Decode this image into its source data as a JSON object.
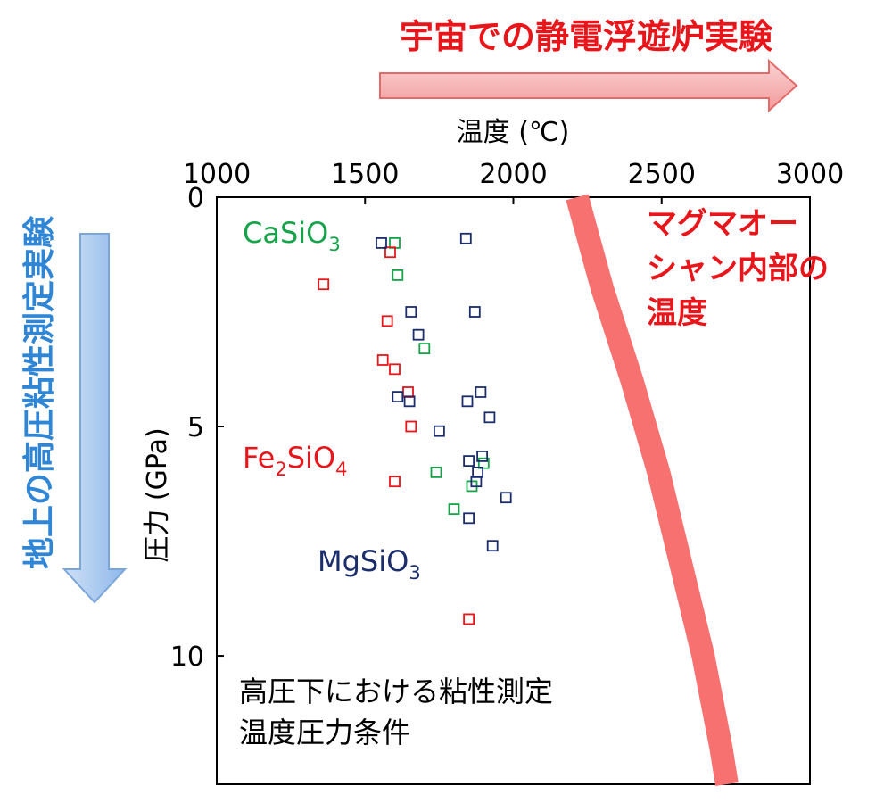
{
  "chart_data": {
    "type": "scatter",
    "xlabel": "温度 (℃)",
    "ylabel": "圧力 (GPa)",
    "xlim": [
      1000,
      3000
    ],
    "ylim": [
      0,
      12.8
    ],
    "y_inverted": true,
    "x_axis_position": "top",
    "xticks": [
      1000,
      1500,
      2000,
      2500,
      3000
    ],
    "yticks": [
      0,
      5,
      10
    ],
    "grid": false,
    "series": [
      {
        "name": "CaSiO3",
        "color": "#16a34a",
        "marker": "open-square",
        "points": [
          {
            "x": 1600,
            "y": 1.0
          },
          {
            "x": 1610,
            "y": 1.7
          },
          {
            "x": 1700,
            "y": 3.3
          },
          {
            "x": 1740,
            "y": 6.0
          },
          {
            "x": 1800,
            "y": 6.8
          },
          {
            "x": 1860,
            "y": 6.3
          },
          {
            "x": 1900,
            "y": 5.8
          }
        ]
      },
      {
        "name": "Fe2SiO4",
        "color": "#e8161b",
        "marker": "open-square",
        "points": [
          {
            "x": 1360,
            "y": 1.9
          },
          {
            "x": 1585,
            "y": 1.2
          },
          {
            "x": 1575,
            "y": 2.7
          },
          {
            "x": 1560,
            "y": 3.55
          },
          {
            "x": 1600,
            "y": 3.75
          },
          {
            "x": 1645,
            "y": 4.25
          },
          {
            "x": 1655,
            "y": 5.0
          },
          {
            "x": 1600,
            "y": 6.2
          },
          {
            "x": 1850,
            "y": 9.2
          }
        ]
      },
      {
        "name": "MgSiO3",
        "color": "#1b2d6b",
        "marker": "open-square",
        "points": [
          {
            "x": 1555,
            "y": 1.0
          },
          {
            "x": 1840,
            "y": 0.9
          },
          {
            "x": 1655,
            "y": 2.5
          },
          {
            "x": 1870,
            "y": 2.5
          },
          {
            "x": 1680,
            "y": 3.0
          },
          {
            "x": 1610,
            "y": 4.35
          },
          {
            "x": 1650,
            "y": 4.45
          },
          {
            "x": 1845,
            "y": 4.45
          },
          {
            "x": 1890,
            "y": 4.25
          },
          {
            "x": 1920,
            "y": 4.8
          },
          {
            "x": 1750,
            "y": 5.1
          },
          {
            "x": 1850,
            "y": 5.75
          },
          {
            "x": 1895,
            "y": 5.65
          },
          {
            "x": 1880,
            "y": 6.0
          },
          {
            "x": 1875,
            "y": 6.2
          },
          {
            "x": 1975,
            "y": 6.55
          },
          {
            "x": 1850,
            "y": 7.0
          },
          {
            "x": 1930,
            "y": 7.6
          }
        ]
      }
    ],
    "magma_ocean_band": {
      "label": "マグマオーシャン内部の温度",
      "color": "#f87171",
      "points": [
        {
          "x": 2215,
          "y": 0
        },
        {
          "x": 2300,
          "y": 2
        },
        {
          "x": 2400,
          "y": 4
        },
        {
          "x": 2490,
          "y": 6
        },
        {
          "x": 2565,
          "y": 8
        },
        {
          "x": 2640,
          "y": 10
        },
        {
          "x": 2700,
          "y": 12
        },
        {
          "x": 2720,
          "y": 12.8
        }
      ]
    }
  },
  "labels": {
    "CaSiO3": {
      "base": "CaSiO",
      "sub": "3"
    },
    "Fe2SiO4": {
      "base": "Fe",
      "sub1": "2",
      "mid": "SiO",
      "sub2": "4"
    },
    "MgSiO3": {
      "base": "MgSiO",
      "sub": "3"
    },
    "magma_line1": "マグマオー",
    "magma_line2": "シャン内部の",
    "magma_line3": "温度",
    "caption_line1": "高圧下における粘性測定",
    "caption_line2": "温度圧力条件"
  },
  "arrows": {
    "space": {
      "label": "宇宙での静電浮遊炉実験",
      "color": "#e8161b",
      "fill": "#f5a3a3"
    },
    "ground": {
      "label": "地上の高圧粘性測定実験",
      "color": "#2f86d6",
      "fill": "#b3d0f2"
    }
  },
  "colors": {
    "axis": "#000000",
    "red_text": "#e8161b",
    "green_text": "#16a34a",
    "navy_text": "#1b2d6b"
  }
}
